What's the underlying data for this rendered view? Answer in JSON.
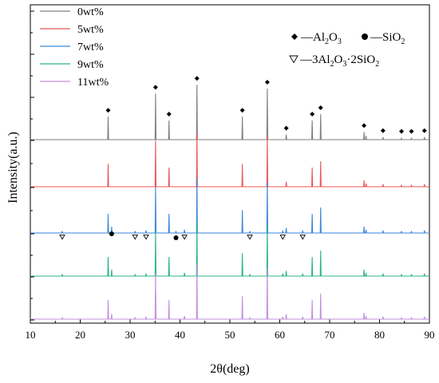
{
  "chart_data": {
    "type": "line",
    "xlabel": "2θ(deg)",
    "ylabel": "Intensity(a.u.)",
    "xlim": [
      10,
      90
    ],
    "xticks": [
      10,
      20,
      30,
      40,
      50,
      60,
      70,
      80,
      90
    ],
    "grid": false,
    "legend_position": "top-left",
    "series": [
      {
        "name": "0wt%",
        "color": "#7f7f7f",
        "peaks": [
          {
            "x": 25.6,
            "h": 0.36
          },
          {
            "x": 35.1,
            "h": 0.72
          },
          {
            "x": 37.8,
            "h": 0.3
          },
          {
            "x": 43.4,
            "h": 0.86
          },
          {
            "x": 52.5,
            "h": 0.36
          },
          {
            "x": 57.5,
            "h": 0.8
          },
          {
            "x": 61.3,
            "h": 0.08
          },
          {
            "x": 66.5,
            "h": 0.3
          },
          {
            "x": 68.2,
            "h": 0.4
          },
          {
            "x": 76.9,
            "h": 0.12
          },
          {
            "x": 77.3,
            "h": 0.06
          },
          {
            "x": 80.7,
            "h": 0.04
          },
          {
            "x": 84.4,
            "h": 0.03
          },
          {
            "x": 86.4,
            "h": 0.03
          },
          {
            "x": 89.0,
            "h": 0.04
          }
        ]
      },
      {
        "name": "5wt%",
        "color": "#e8575a",
        "peaks": [
          {
            "x": 25.6,
            "h": 0.36
          },
          {
            "x": 35.1,
            "h": 0.72
          },
          {
            "x": 37.8,
            "h": 0.3
          },
          {
            "x": 43.4,
            "h": 0.86
          },
          {
            "x": 52.5,
            "h": 0.36
          },
          {
            "x": 57.5,
            "h": 0.8
          },
          {
            "x": 61.3,
            "h": 0.08
          },
          {
            "x": 66.5,
            "h": 0.3
          },
          {
            "x": 68.2,
            "h": 0.4
          },
          {
            "x": 76.9,
            "h": 0.1
          },
          {
            "x": 77.3,
            "h": 0.05
          },
          {
            "x": 80.7,
            "h": 0.04
          },
          {
            "x": 84.4,
            "h": 0.03
          },
          {
            "x": 86.4,
            "h": 0.03
          },
          {
            "x": 89.0,
            "h": 0.04
          }
        ]
      },
      {
        "name": "7wt%",
        "color": "#3a86d8",
        "peaks": [
          {
            "x": 16.4,
            "h": 0.03
          },
          {
            "x": 25.6,
            "h": 0.3
          },
          {
            "x": 26.3,
            "h": 0.1
          },
          {
            "x": 31.0,
            "h": 0.03
          },
          {
            "x": 33.2,
            "h": 0.04
          },
          {
            "x": 35.1,
            "h": 0.72
          },
          {
            "x": 37.8,
            "h": 0.3
          },
          {
            "x": 39.2,
            "h": 0.03
          },
          {
            "x": 40.9,
            "h": 0.05
          },
          {
            "x": 43.4,
            "h": 0.86
          },
          {
            "x": 52.5,
            "h": 0.36
          },
          {
            "x": 54.0,
            "h": 0.03
          },
          {
            "x": 57.5,
            "h": 0.8
          },
          {
            "x": 60.6,
            "h": 0.04
          },
          {
            "x": 61.3,
            "h": 0.08
          },
          {
            "x": 64.6,
            "h": 0.04
          },
          {
            "x": 66.5,
            "h": 0.3
          },
          {
            "x": 68.2,
            "h": 0.4
          },
          {
            "x": 76.9,
            "h": 0.1
          },
          {
            "x": 77.3,
            "h": 0.05
          },
          {
            "x": 80.7,
            "h": 0.04
          },
          {
            "x": 84.4,
            "h": 0.03
          },
          {
            "x": 86.4,
            "h": 0.03
          },
          {
            "x": 89.0,
            "h": 0.04
          }
        ]
      },
      {
        "name": "9wt%",
        "color": "#2bb38a",
        "peaks": [
          {
            "x": 16.4,
            "h": 0.03
          },
          {
            "x": 25.6,
            "h": 0.3
          },
          {
            "x": 26.3,
            "h": 0.1
          },
          {
            "x": 31.0,
            "h": 0.03
          },
          {
            "x": 33.2,
            "h": 0.04
          },
          {
            "x": 35.1,
            "h": 0.72
          },
          {
            "x": 37.8,
            "h": 0.3
          },
          {
            "x": 40.9,
            "h": 0.05
          },
          {
            "x": 43.4,
            "h": 0.86
          },
          {
            "x": 52.5,
            "h": 0.36
          },
          {
            "x": 54.0,
            "h": 0.03
          },
          {
            "x": 57.5,
            "h": 0.8
          },
          {
            "x": 60.6,
            "h": 0.04
          },
          {
            "x": 61.3,
            "h": 0.08
          },
          {
            "x": 64.6,
            "h": 0.04
          },
          {
            "x": 66.5,
            "h": 0.3
          },
          {
            "x": 68.2,
            "h": 0.4
          },
          {
            "x": 76.9,
            "h": 0.1
          },
          {
            "x": 77.3,
            "h": 0.05
          },
          {
            "x": 80.7,
            "h": 0.04
          },
          {
            "x": 84.4,
            "h": 0.03
          },
          {
            "x": 86.4,
            "h": 0.03
          },
          {
            "x": 89.0,
            "h": 0.04
          }
        ]
      },
      {
        "name": "11wt%",
        "color": "#c28fdc",
        "peaks": [
          {
            "x": 16.4,
            "h": 0.03
          },
          {
            "x": 25.6,
            "h": 0.3
          },
          {
            "x": 26.3,
            "h": 0.08
          },
          {
            "x": 31.0,
            "h": 0.03
          },
          {
            "x": 33.2,
            "h": 0.04
          },
          {
            "x": 35.1,
            "h": 0.72
          },
          {
            "x": 37.8,
            "h": 0.3
          },
          {
            "x": 40.9,
            "h": 0.05
          },
          {
            "x": 43.4,
            "h": 0.86
          },
          {
            "x": 52.5,
            "h": 0.36
          },
          {
            "x": 54.0,
            "h": 0.03
          },
          {
            "x": 57.5,
            "h": 0.8
          },
          {
            "x": 60.6,
            "h": 0.04
          },
          {
            "x": 61.3,
            "h": 0.08
          },
          {
            "x": 64.6,
            "h": 0.04
          },
          {
            "x": 66.5,
            "h": 0.3
          },
          {
            "x": 68.2,
            "h": 0.4
          },
          {
            "x": 76.9,
            "h": 0.1
          },
          {
            "x": 77.3,
            "h": 0.05
          },
          {
            "x": 80.7,
            "h": 0.04
          },
          {
            "x": 84.4,
            "h": 0.03
          },
          {
            "x": 86.4,
            "h": 0.03
          },
          {
            "x": 89.0,
            "h": 0.04
          }
        ]
      }
    ],
    "phase_legend": {
      "al2o3": {
        "symbol": "diamond",
        "label": "—Al",
        "sub1": "2",
        "mid": "O",
        "sub2": "3"
      },
      "sio2": {
        "symbol": "circle",
        "label": "—SiO",
        "sub1": "2"
      },
      "mullite": {
        "symbol": "triangle-down",
        "label": "—3Al",
        "sub1": "2",
        "mid1": "O",
        "sub2": "3",
        "mid2": "·2SiO",
        "sub3": "2"
      }
    },
    "annotations": {
      "al2o3_on_0wt": [
        25.6,
        35.1,
        37.8,
        43.4,
        52.5,
        57.5,
        61.3,
        66.5,
        68.2,
        76.9,
        80.7,
        84.4,
        86.4,
        89.0
      ],
      "sio2_on_7wt": [
        26.3,
        39.2
      ],
      "mullite_on_7wt": [
        16.4,
        31.0,
        33.2,
        40.9,
        54.0,
        60.6,
        64.6
      ]
    }
  }
}
